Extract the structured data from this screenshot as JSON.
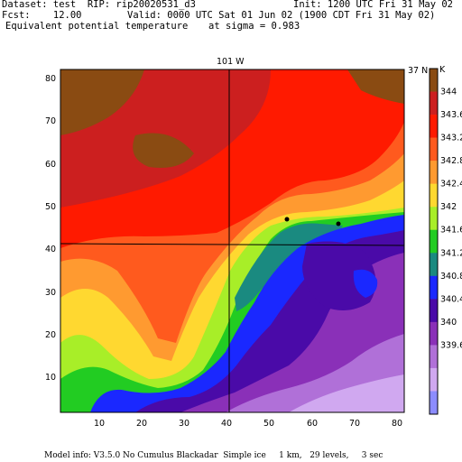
{
  "header": {
    "dataset": "Dataset: test  RIP: rip20020531_d3",
    "init": "Init: 1200 UTC Fri 31 May 02",
    "fcst": "Fcst:    12.00",
    "valid": "Valid: 0000 UTC Sat 01 Jun 02 (1900 CDT Fri 31 May 02)",
    "field": "Equivalent potential temperature",
    "level": "at sigma = 0.983"
  },
  "map": {
    "top_label": "101 W",
    "right_label": "37 N",
    "colorbar_unit": "K",
    "x_ticks": [
      "10",
      "20",
      "30",
      "40",
      "50",
      "60",
      "70",
      "80"
    ],
    "y_ticks": [
      "10",
      "20",
      "30",
      "40",
      "50",
      "60",
      "70",
      "80"
    ],
    "colorbar_labels": [
      "344",
      "343.6",
      "343.2",
      "342.8",
      "342.4",
      "342",
      "341.6",
      "341.2",
      "340.8",
      "340.4",
      "340",
      "339.6"
    ],
    "colors": {
      "c344": "#8a4b12",
      "c3436": "#cc1f1f",
      "c3432": "#ff1a00",
      "c3428": "#ff5a1e",
      "c3424": "#ff9a30",
      "c342": "#ffd830",
      "c3416": "#a8ee28",
      "c3412": "#22cc22",
      "c3408": "#1a8a80",
      "c3404": "#1a28ff",
      "c340": "#4a0aa8",
      "c3396": "#8a30b8",
      "c3392": "#b070d8",
      "c3388": "#d0a8f0",
      "c3384": "#8c8cff"
    }
  },
  "footer": {
    "model_info": "Model info: V3.5.0 No Cumulus Blackadar  Simple ice     1 km,   29 levels,     3 sec"
  }
}
